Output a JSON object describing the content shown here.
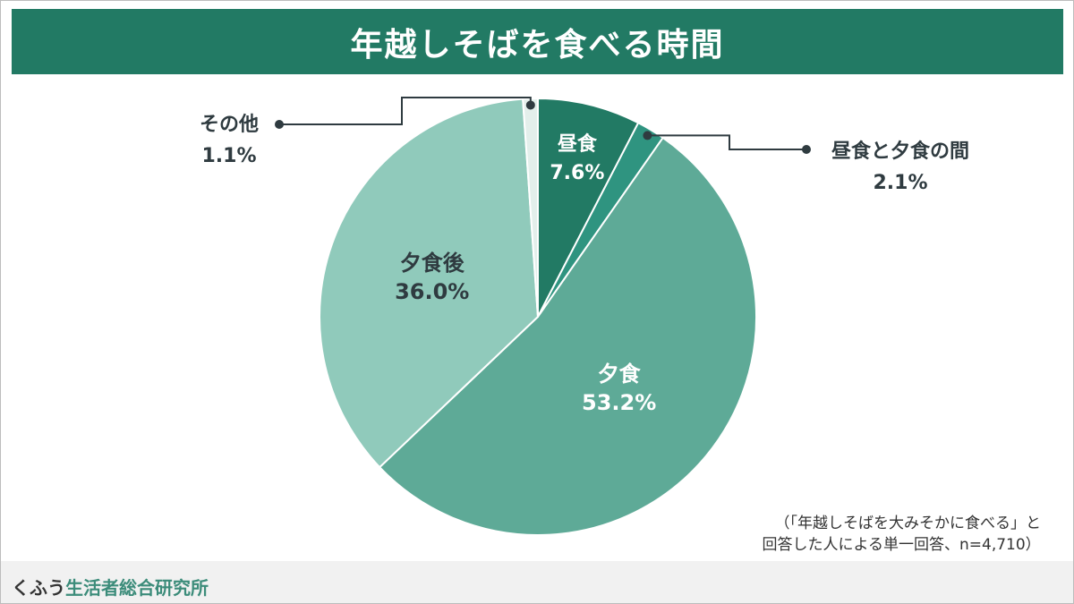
{
  "header": {
    "title": "年越しそばを食べる時間"
  },
  "chart_data": {
    "type": "pie",
    "title": "年越しそばを食べる時間",
    "slices": [
      {
        "label": "昼食",
        "value": 7.6,
        "display": "7.6%",
        "color": "#227a64"
      },
      {
        "label": "昼食と夕食の間",
        "value": 2.1,
        "display": "2.1%",
        "color": "#2f9480"
      },
      {
        "label": "夕食",
        "value": 53.2,
        "display": "53.2%",
        "color": "#5eaa97"
      },
      {
        "label": "夕食後",
        "value": 36.0,
        "display": "36.0%",
        "color": "#90cabb"
      },
      {
        "label": "その他",
        "value": 1.1,
        "display": "1.1%",
        "color": "#e3efeb"
      }
    ]
  },
  "note": {
    "line1": "（「年越しそばを大みそかに食べる」と",
    "line2": "回答した人による単一回答、n=4,710）"
  },
  "footer": {
    "brand_a": "くふう",
    "brand_b": "生活者総合研究所"
  }
}
